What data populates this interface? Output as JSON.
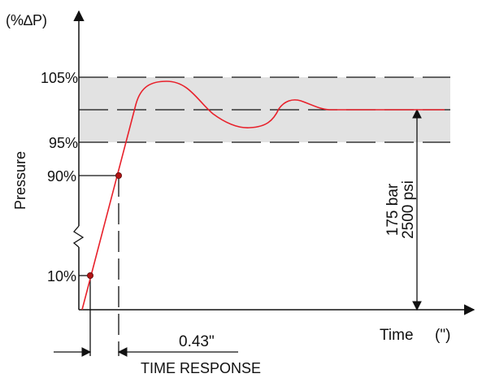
{
  "diagram": {
    "y_unit": "(%∆P)",
    "y_axis_label": "Pressure",
    "x_axis_label": "Time",
    "x_unit": "(\")",
    "levels": {
      "upper_band": "105%",
      "lower_band": "95%",
      "p90": "90%",
      "p10": "10%"
    },
    "pressure_bar": "175 bar",
    "pressure_psi": "2500 psi",
    "time_value": "0.43\"",
    "time_response_label": "TIME RESPONSE",
    "colors": {
      "band": "#e2e2e2",
      "curve": "#e8212b",
      "marker_fill": "#b11414",
      "axis": "#111111"
    }
  }
}
